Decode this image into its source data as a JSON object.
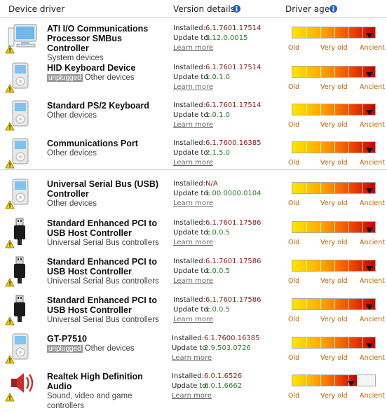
{
  "header": {
    "device": "Device driver",
    "version": "Version details",
    "age": "Driver age"
  },
  "labels": {
    "installed": "Installed:",
    "update": "Update to:",
    "learn_more": "Learn more",
    "scale": [
      "Old",
      "Very old",
      "Ancient"
    ]
  },
  "drivers": [
    {
      "name": "ATI I/O Communications Processor SMBus Controller",
      "category": "System devices",
      "installed": "6.1.7601.17514",
      "update": "5.12.0.0015",
      "age": 100,
      "icon": "monitor"
    },
    {
      "name": "HID Keyboard Device",
      "status": "unplugged",
      "category": "Other devices",
      "installed": "6.1.7601.17514",
      "update": "1.0.1.0",
      "age": 100,
      "icon": "device"
    },
    {
      "name": "Standard PS/2 Keyboard",
      "category": "Other devices",
      "installed": "6.1.7601.17514",
      "update": "1.0.1.0",
      "age": 100,
      "icon": "device"
    },
    {
      "name": "Communications Port",
      "category": "Other devices",
      "installed": "6.1.7600.16385",
      "update": "2.1.5.0",
      "age": 100,
      "icon": "device"
    },
    {
      "name": "Universal Serial Bus (USB) Controller",
      "category": "Other devices",
      "installed": "N/A",
      "update": "1.00.0000.0104",
      "age": 100,
      "icon": "device"
    },
    {
      "name": "Standard Enhanced PCI to USB Host Controller",
      "category": "Universal Serial Bus controllers",
      "installed": "6.1.7601.17586",
      "update": "1.0.0.5",
      "age": 100,
      "icon": "usb"
    },
    {
      "name": "Standard Enhanced PCI to USB Host Controller",
      "category": "Universal Serial Bus controllers",
      "installed": "6.1.7601.17586",
      "update": "1.0.0.5",
      "age": 100,
      "icon": "usb"
    },
    {
      "name": "Standard Enhanced PCI to USB Host Controller",
      "category": "Universal Serial Bus controllers",
      "installed": "6.1.7601.17586",
      "update": "1.0.0.5",
      "age": 100,
      "icon": "usb"
    },
    {
      "name": "GT-P7510",
      "status": "unplugged",
      "category": "Other devices",
      "installed": "6.1.7600.16385",
      "update": "2.9.503.0726",
      "age": 100,
      "icon": "device"
    },
    {
      "name": "Realtek High Definition Audio",
      "category": "Sound, video and game controllers",
      "installed": "6.0.1.6526",
      "update": "6.0.1.6662",
      "age": 78,
      "icon": "speaker"
    }
  ]
}
